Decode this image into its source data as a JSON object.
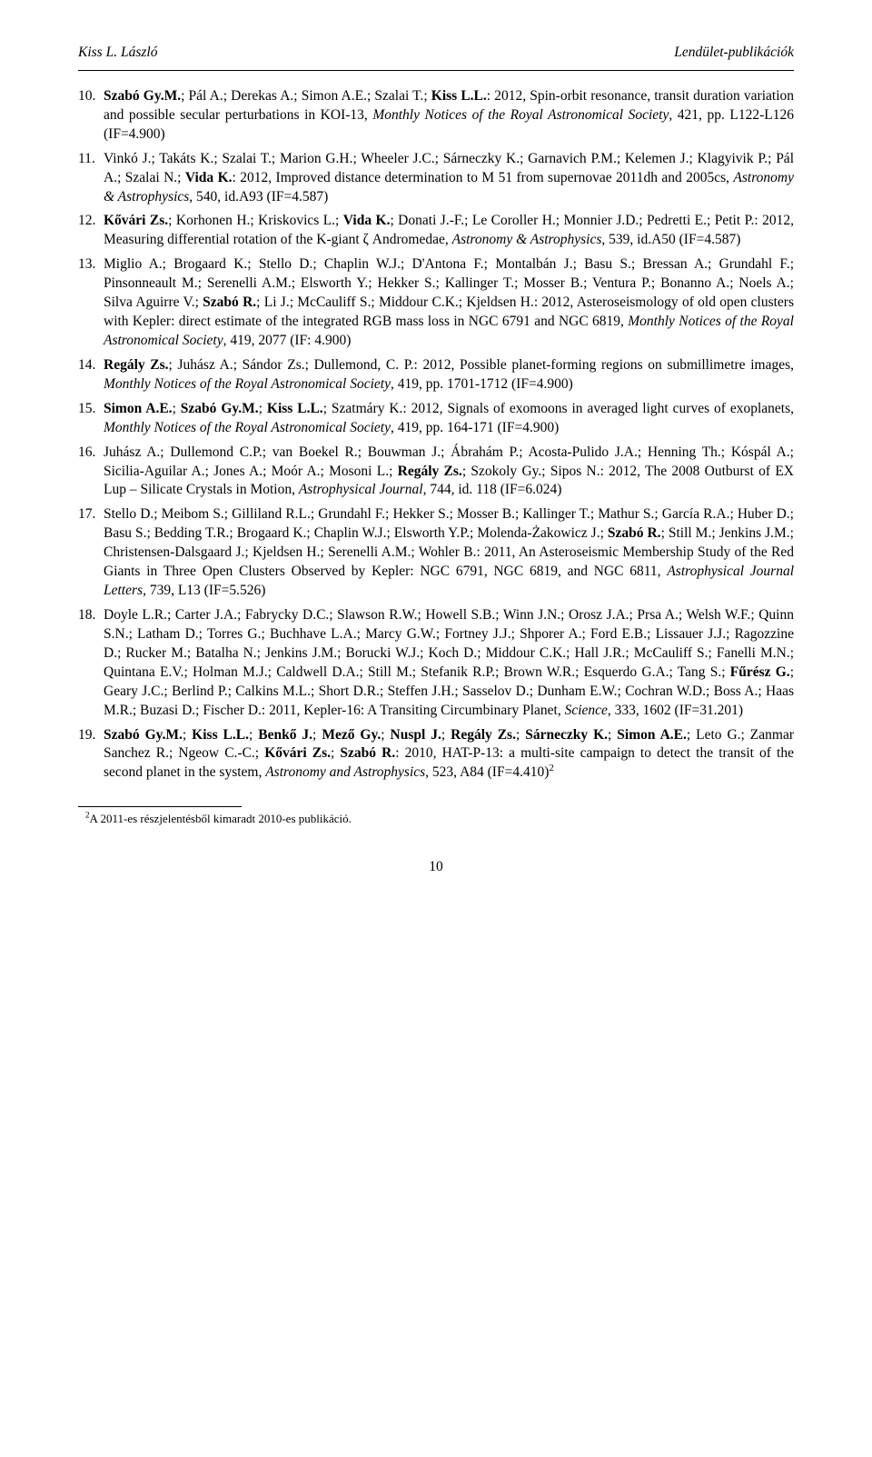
{
  "header": {
    "left": "Kiss L. László",
    "right": "Lendület-publikációk"
  },
  "refs": [
    {
      "html": "<b>Szabó Gy.M.</b>; Pál A.; Derekas A.; Simon A.E.; Szalai T.; <b>Kiss L.L.</b>: 2012, Spin-orbit resonance, transit duration variation and possible secular perturbations in KOI-13, <i>Monthly Notices of the Royal Astronomical Society</i>, 421, pp. L122-L126 (IF=4.900)"
    },
    {
      "html": "Vinkó J.; Takáts K.; Szalai T.; Marion G.H.; Wheeler J.C.; Sárneczky K.; Garnavich P.M.; Kelemen J.; Klagyivik P.; Pál A.; Szalai N.; <b>Vida K.</b>: 2012, Improved distance determination to M 51 from supernovae 2011dh and 2005cs, <i>Astronomy & Astrophysics</i>, 540, id.A93 (IF=4.587)"
    },
    {
      "html": "<b>Kővári Zs.</b>; Korhonen H.; Kriskovics L.; <b>Vida K.</b>; Donati J.-F.; Le Coroller H.; Monnier J.D.; Pedretti E.; Petit P.: 2012, Measuring differential rotation of the K-giant ζ Andromedae, <i>Astronomy & Astrophysics</i>, 539, id.A50 (IF=4.587)"
    },
    {
      "html": "Miglio A.; Brogaard K.; Stello D.; Chaplin W.J.; D'Antona F.; Montalbán J.; Basu S.; Bressan A.; Grundahl F.; Pinsonneault M.; Serenelli A.M.; Elsworth Y.; Hekker S.; Kallinger T.; Mosser B.; Ventura P.; Bonanno A.; Noels A.; Silva Aguirre V.; <b>Szabó R.</b>; Li J.; McCauliff S.; Middour C.K.; Kjeldsen H.: 2012, Asteroseismology of old open clusters with Kepler: direct estimate of the integrated RGB mass loss in NGC 6791 and NGC 6819, <i>Monthly Notices of the Royal Astronomical Society</i>, 419, 2077 (IF: 4.900)"
    },
    {
      "html": "<b>Regály Zs.</b>; Juhász A.; Sándor Zs.; Dullemond, C. P.: 2012, Possible planet-forming regions on submillimetre images, <i>Monthly Notices of the Royal Astronomical Society</i>, 419, pp. 1701-1712 (IF=4.900)"
    },
    {
      "html": "<b>Simon A.E.</b>; <b>Szabó Gy.M.</b>; <b>Kiss L.L.</b>; Szatmáry K.: 2012, Signals of exomoons in averaged light curves of exoplanets, <i>Monthly Notices of the Royal Astronomical Society</i>, 419, pp. 164-171 (IF=4.900)"
    },
    {
      "html": "Juhász A.; Dullemond C.P.; van Boekel R.; Bouwman J.; Ábrahám P.; Acosta-Pulido J.A.; Henning Th.; Kóspál A.; Sicilia-Aguilar A.; Jones A.; Moór A.; Mosoni L.; <b>Regály Zs.</b>; Szokoly Gy.; Sipos N.: 2012, The 2008 Outburst of EX Lup – Silicate Crystals in Motion, <i>Astrophysical Journal</i>, 744, id. 118 (IF=6.024)"
    },
    {
      "html": "Stello D.; Meibom S.; Gilliland R.L.; Grundahl F.; Hekker S.; Mosser B.; Kallinger T.; Mathur S.; García R.A.; Huber D.; Basu S.; Bedding T.R.; Brogaard K.; Chaplin W.J.; Elsworth Y.P.; Molenda-Żakowicz J.; <b>Szabó R.</b>; Still M.; Jenkins J.M.; Christensen-Dalsgaard J.; Kjeldsen H.; Serenelli A.M.; Wohler B.: 2011, An Asteroseismic Membership Study of the Red Giants in Three Open Clusters Observed by Kepler: NGC 6791, NGC 6819, and NGC 6811, <i>Astrophysical Journal Letters</i>, 739, L13 (IF=5.526)"
    },
    {
      "html": "Doyle L.R.; Carter J.A.; Fabrycky D.C.; Slawson R.W.; Howell S.B.; Winn J.N.; Orosz J.A.; Prsa A.; Welsh W.F.; Quinn S.N.; Latham D.; Torres G.; Buchhave L.A.; Marcy G.W.; Fortney J.J.; Shporer A.; Ford E.B.; Lissauer J.J.; Ragozzine D.; Rucker M.; Batalha N.; Jenkins J.M.; Borucki W.J.; Koch D.; Middour C.K.; Hall J.R.; McCauliff S.; Fanelli M.N.; Quintana E.V.; Holman M.J.; Caldwell D.A.; Still M.; Stefanik R.P.; Brown W.R.; Esquerdo G.A.; Tang S.; <b>Fűrész G.</b>; Geary J.C.; Berlind P.; Calkins M.L.; Short D.R.; Steffen J.H.; Sasselov D.; Dunham E.W.; Cochran W.D.; Boss A.; Haas M.R.; Buzasi D.; Fischer D.: 2011, Kepler-16: A Transiting Circumbinary Planet, <i>Science</i>, 333, 1602 (IF=31.201)"
    },
    {
      "html": "<b>Szabó Gy.M.</b>; <b>Kiss L.L.</b>; <b>Benkő J.</b>; <b>Mező Gy.</b>; <b>Nuspl J.</b>; <b>Regály Zs.</b>; <b>Sárneczky K.</b>; <b>Simon A.E.</b>; Leto G.; Zanmar Sanchez R.; Ngeow C.-C.; <b>Kővári Zs.</b>; <b>Szabó R.</b>: 2010, HAT-P-13: a multi-site campaign to detect the transit of the second planet in the system, <i>Astronomy and Astrophysics</i>, 523, A84 (IF=4.410)<sup>2</sup>"
    }
  ],
  "footnote": {
    "marker": "2",
    "text": "A 2011-es részjelentésből kimaradt 2010-es publikáció."
  },
  "pageNumber": "10"
}
